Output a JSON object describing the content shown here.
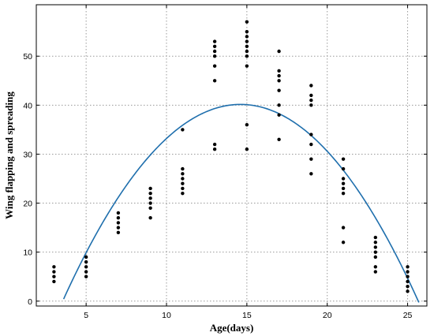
{
  "chart_data": {
    "type": "scatter",
    "title": "",
    "xlabel": "Age(days)",
    "ylabel": "Wing flapping and spreading",
    "xlim": [
      1.9,
      26.2
    ],
    "ylim": [
      -1,
      60.5
    ],
    "x_ticks": [
      5,
      10,
      15,
      20,
      25
    ],
    "y_ticks": [
      0,
      10,
      20,
      30,
      40,
      50
    ],
    "grid": true,
    "legend": "none",
    "point_color": "#000000",
    "fit_color": "#1f6fad",
    "series": [
      {
        "type": "scatter",
        "points": [
          [
            3,
            4
          ],
          [
            3,
            5
          ],
          [
            3,
            6
          ],
          [
            3,
            7
          ],
          [
            5,
            5
          ],
          [
            5,
            6
          ],
          [
            5,
            7
          ],
          [
            5,
            8
          ],
          [
            5,
            9
          ],
          [
            7,
            14
          ],
          [
            7,
            15
          ],
          [
            7,
            16
          ],
          [
            7,
            17
          ],
          [
            7,
            18
          ],
          [
            9,
            17
          ],
          [
            9,
            19
          ],
          [
            9,
            20
          ],
          [
            9,
            21
          ],
          [
            9,
            22
          ],
          [
            9,
            23
          ],
          [
            11,
            22
          ],
          [
            11,
            23
          ],
          [
            11,
            24
          ],
          [
            11,
            25
          ],
          [
            11,
            26
          ],
          [
            11,
            27
          ],
          [
            11,
            35
          ],
          [
            13,
            31
          ],
          [
            13,
            32
          ],
          [
            13,
            45
          ],
          [
            13,
            48
          ],
          [
            13,
            50
          ],
          [
            13,
            51
          ],
          [
            13,
            52
          ],
          [
            13,
            53
          ],
          [
            15,
            31
          ],
          [
            15,
            36
          ],
          [
            15,
            48
          ],
          [
            15,
            50
          ],
          [
            15,
            51
          ],
          [
            15,
            52
          ],
          [
            15,
            53
          ],
          [
            15,
            54
          ],
          [
            15,
            55
          ],
          [
            15,
            57
          ],
          [
            17,
            33
          ],
          [
            17,
            38
          ],
          [
            17,
            40
          ],
          [
            17,
            43
          ],
          [
            17,
            45
          ],
          [
            17,
            46
          ],
          [
            17,
            47
          ],
          [
            17,
            51
          ],
          [
            19,
            26
          ],
          [
            19,
            29
          ],
          [
            19,
            32
          ],
          [
            19,
            34
          ],
          [
            19,
            40
          ],
          [
            19,
            41
          ],
          [
            19,
            42
          ],
          [
            19,
            44
          ],
          [
            21,
            12
          ],
          [
            21,
            15
          ],
          [
            21,
            22
          ],
          [
            21,
            23
          ],
          [
            21,
            24
          ],
          [
            21,
            25
          ],
          [
            21,
            27
          ],
          [
            21,
            29
          ],
          [
            23,
            6
          ],
          [
            23,
            7
          ],
          [
            23,
            9
          ],
          [
            23,
            10
          ],
          [
            23,
            11
          ],
          [
            23,
            12
          ],
          [
            23,
            13
          ],
          [
            25,
            2
          ],
          [
            25,
            3
          ],
          [
            25,
            4
          ],
          [
            25,
            5
          ],
          [
            25,
            6
          ],
          [
            25,
            7
          ]
        ]
      },
      {
        "type": "line",
        "curve": "quadratic-fit",
        "coefficients": {
          "a": -0.3282,
          "b": 9.585,
          "c": -29.83
        },
        "x_range": [
          3.6,
          25.7
        ]
      }
    ]
  }
}
